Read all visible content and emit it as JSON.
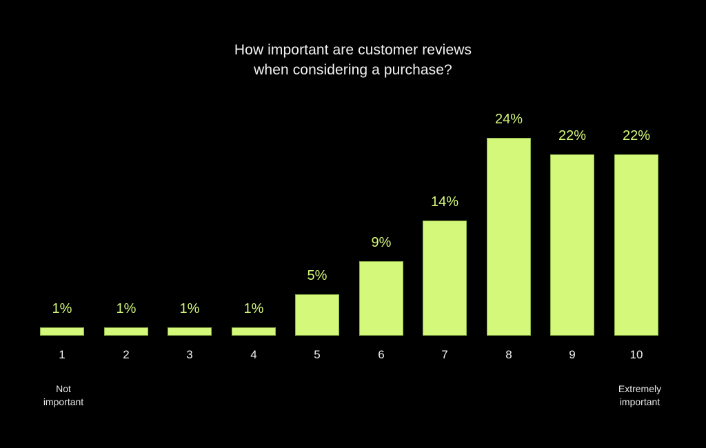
{
  "chart_data": {
    "type": "bar",
    "title": "How important are customer reviews when considering a purchase?",
    "title_lines": [
      "How important are customer reviews",
      "when considering a purchase?"
    ],
    "xlabel": "",
    "ylabel": "",
    "categories": [
      "1",
      "2",
      "3",
      "4",
      "5",
      "6",
      "7",
      "8",
      "9",
      "10"
    ],
    "values": [
      1,
      1,
      1,
      1,
      5,
      9,
      14,
      24,
      22,
      22
    ],
    "value_labels": [
      "1%",
      "1%",
      "1%",
      "1%",
      "5%",
      "9%",
      "14%",
      "24%",
      "22%",
      "22%"
    ],
    "unit": "%",
    "ylim": [
      0,
      24
    ],
    "grid": false,
    "legend": null,
    "annotations": {
      "low_end": [
        "Not",
        "important"
      ],
      "high_end": [
        "Extremely",
        "important"
      ]
    },
    "colors": {
      "background": "#000000",
      "bar": "#d4f87a",
      "bar_edge": "#8fb34a",
      "value_label": "#d4f87a",
      "text": "#f2f2f2"
    }
  }
}
